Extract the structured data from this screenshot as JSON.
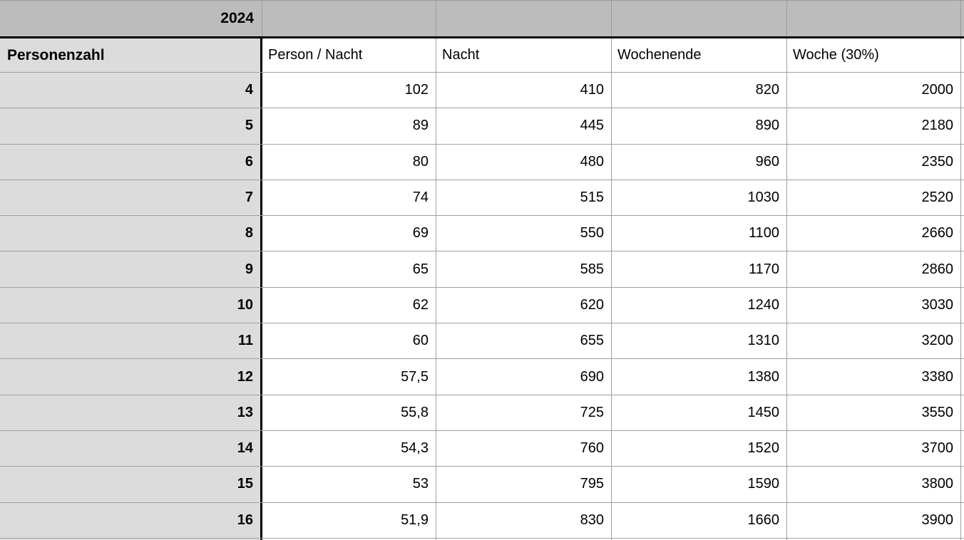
{
  "colors": {
    "year_band_bg": "#bcbcbc",
    "row_header_bg": "#dcdcdc",
    "grid_line": "#a0a0a0",
    "year_band_line": "#9a9a9a",
    "accent_border": "#000000",
    "cell_bg": "#ffffff",
    "text": "#000000"
  },
  "table": {
    "year": "2024",
    "columns": [
      "Personenzahl",
      "Person / Nacht",
      "Nacht",
      "Wochenende",
      "Woche (30%)"
    ],
    "rows": [
      [
        "4",
        "102",
        "410",
        "820",
        "2000"
      ],
      [
        "5",
        "89",
        "445",
        "890",
        "2180"
      ],
      [
        "6",
        "80",
        "480",
        "960",
        "2350"
      ],
      [
        "7",
        "74",
        "515",
        "1030",
        "2520"
      ],
      [
        "8",
        "69",
        "550",
        "1100",
        "2660"
      ],
      [
        "9",
        "65",
        "585",
        "1170",
        "2860"
      ],
      [
        "10",
        "62",
        "620",
        "1240",
        "3030"
      ],
      [
        "11",
        "60",
        "655",
        "1310",
        "3200"
      ],
      [
        "12",
        "57,5",
        "690",
        "1380",
        "3380"
      ],
      [
        "13",
        "55,8",
        "725",
        "1450",
        "3550"
      ],
      [
        "14",
        "54,3",
        "760",
        "1520",
        "3700"
      ],
      [
        "15",
        "53",
        "795",
        "1590",
        "3800"
      ],
      [
        "16",
        "51,9",
        "830",
        "1660",
        "3900"
      ]
    ]
  }
}
